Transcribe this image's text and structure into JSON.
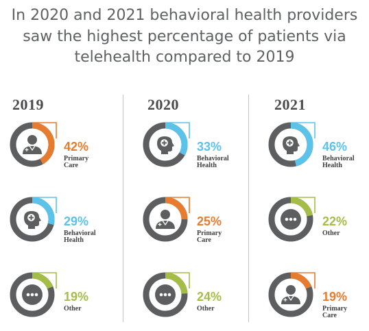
{
  "title": {
    "line1": "In 2020 and 2021 behavioral health providers",
    "line2": "saw the highest percentage of patients via",
    "line3": "telehealth compared to 2019"
  },
  "colors": {
    "Primary Care": "#e67c2f",
    "Behavioral Health": "#5bc2ea",
    "Other": "#a4bd47",
    "track": "#5d5e60"
  },
  "chart_data": [
    {
      "type": "pie",
      "title": "2019",
      "slices": [
        {
          "label": "Primary Care",
          "value": 42,
          "icon": "doctor-icon"
        },
        {
          "label": "Behavioral Health",
          "value": 29,
          "icon": "head-icon"
        },
        {
          "label": "Other",
          "value": 19,
          "icon": "ellipsis-icon"
        }
      ]
    },
    {
      "type": "pie",
      "title": "2020",
      "slices": [
        {
          "label": "Behavioral Health",
          "value": 33,
          "icon": "head-icon"
        },
        {
          "label": "Primary Care",
          "value": 25,
          "icon": "doctor-icon"
        },
        {
          "label": "Other",
          "value": 24,
          "icon": "ellipsis-icon"
        }
      ]
    },
    {
      "type": "pie",
      "title": "2021",
      "slices": [
        {
          "label": "Behavioral Health",
          "value": 46,
          "icon": "head-icon"
        },
        {
          "label": "Other",
          "value": 22,
          "icon": "ellipsis-icon"
        },
        {
          "label": "Primary Care",
          "value": 19,
          "icon": "doctor-icon"
        }
      ]
    }
  ]
}
